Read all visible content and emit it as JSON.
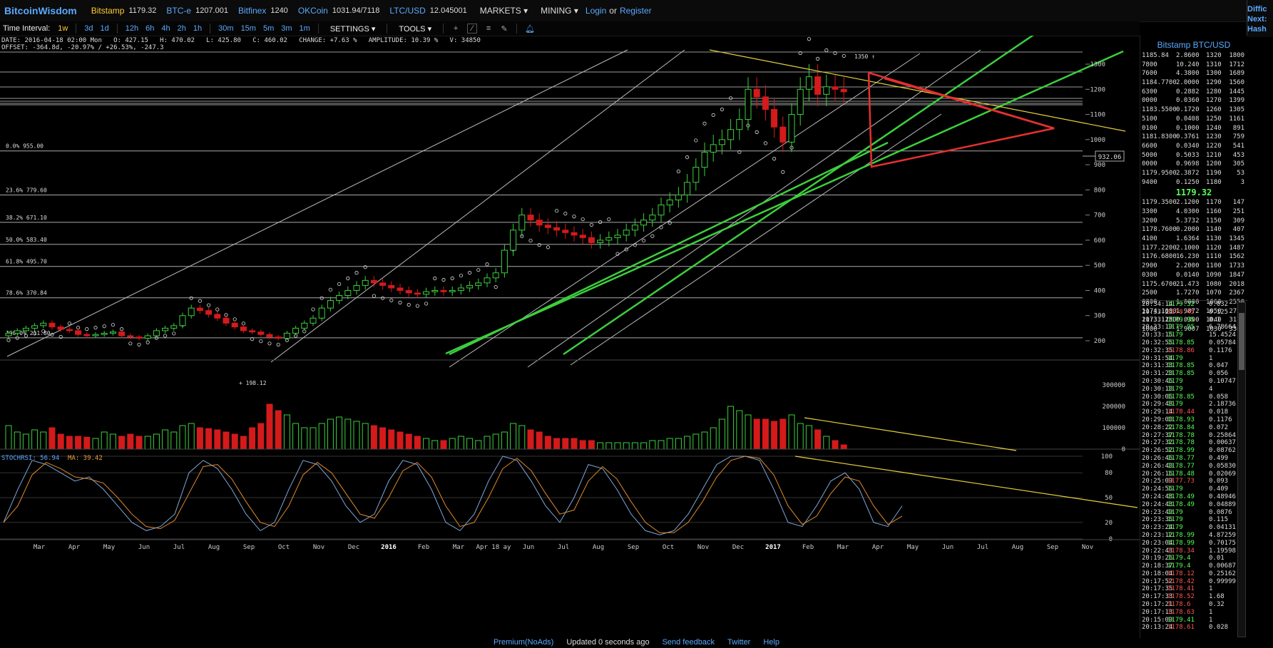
{
  "topbar": {
    "brand": "BitcoinWisdom",
    "tickers": [
      {
        "name": "Bitstamp",
        "price": "1179.32"
      },
      {
        "name": "BTC-e",
        "price": "1207.001"
      },
      {
        "name": "Bitfinex",
        "price": "1240"
      },
      {
        "name": "OKCoin",
        "price": "1031.94/7118"
      },
      {
        "name": "LTC/USD",
        "price": "12.045001"
      }
    ],
    "menus": [
      "MARKETS",
      "MINING"
    ],
    "login": "Login",
    "or": "or",
    "register": "Register"
  },
  "rightstub": [
    "Diffic",
    "Next:",
    "Hash"
  ],
  "toolbar": {
    "label": "Time Interval:",
    "intervals": [
      "1w",
      "3d",
      "1d",
      "12h",
      "6h",
      "4h",
      "2h",
      "1h",
      "30m",
      "15m",
      "5m",
      "3m",
      "1m"
    ],
    "active_interval": "1w",
    "settings": "SETTINGS",
    "tools": "TOOLS"
  },
  "info": {
    "line1": "DATE: 2016-04-18 02:00 Mon   O: 427.15   H: 470.02   L: 425.80   C: 460.02   CHANGE: +7.63 %   AMPLITUDE: 10.39 %   V: 34850",
    "line2": "OFFSET: -364.8d, -20.97% / +26.53%, -247.3"
  },
  "chart": {
    "fib_levels": [
      {
        "label": "0.0% 955.00",
        "value": 955
      },
      {
        "label": "23.6% 779.60",
        "value": 779.6
      },
      {
        "label": "38.2% 671.10",
        "value": 671.1
      },
      {
        "label": "50.0% 583.40",
        "value": 583.4
      },
      {
        "label": "61.8% 495.70",
        "value": 495.7
      },
      {
        "label": "78.6% 370.84",
        "value": 370.84
      },
      {
        "label": "100.0% 211.80",
        "value": 211.8
      }
    ],
    "price_ticks": [
      "1300",
      "1200",
      "1100",
      "1000",
      "900",
      "800",
      "700",
      "600",
      "500",
      "400",
      "300",
      "200"
    ],
    "volume_ticks": [
      "300000",
      "200000",
      "100000",
      "0"
    ],
    "rsi_ticks": [
      "100",
      "80",
      "50",
      "20",
      "0"
    ],
    "time_labels": [
      "Mar",
      "Apr",
      "May",
      "Jun",
      "Jul",
      "Aug",
      "Sep",
      "Oct",
      "Nov",
      "Dec",
      "2016",
      "Feb",
      "Mar",
      "Apr 18 ay",
      "Jun",
      "Jul",
      "Aug",
      "Sep",
      "Oct",
      "Nov",
      "Dec",
      "2017",
      "Feb",
      "Mar",
      "Apr",
      "May",
      "Jun",
      "Jul",
      "Aug",
      "Sep",
      "Nov"
    ],
    "crosshair_price": "932.06",
    "annotation_high": "1350",
    "annotation_low": "198.12",
    "stochrsi_label": "STOCHRSI: 56.94",
    "ma_label": "MA: 39.42"
  },
  "sidebar": {
    "title": "Bitstamp BTC/USD",
    "asks": [
      [
        "1185.84",
        "2.8600",
        "1320",
        "1800"
      ],
      [
        "7800",
        "10.240",
        "1310",
        "1712"
      ],
      [
        "7600",
        "4.3800",
        "1300",
        "1689"
      ],
      [
        "1184.7700",
        "2.0000",
        "1290",
        "1560"
      ],
      [
        "6300",
        "0.2882",
        "1280",
        "1445"
      ],
      [
        "0000",
        "0.0360",
        "1270",
        "1399"
      ],
      [
        "1183.5500",
        "0.1720",
        "1260",
        "1305"
      ],
      [
        "5100",
        "0.0408",
        "1250",
        "1161"
      ],
      [
        "0100",
        "0.1000",
        "1240",
        "891"
      ],
      [
        "1181.8300",
        "0.3761",
        "1230",
        "759"
      ],
      [
        "6600",
        "0.0340",
        "1220",
        "541"
      ],
      [
        "5000",
        "0.5033",
        "1210",
        "453"
      ],
      [
        "0000",
        "0.9698",
        "1200",
        "305"
      ],
      [
        "1179.9500",
        "2.3872",
        "1190",
        "53"
      ],
      [
        "9400",
        "0.1250",
        "1180",
        "3"
      ]
    ],
    "last_price": "1179.32",
    "bids": [
      [
        "1179.3500",
        "2.1200",
        "1170",
        "147"
      ],
      [
        "3300",
        "4.0300",
        "1160",
        "251"
      ],
      [
        "3200",
        "5.3732",
        "1150",
        "309"
      ],
      [
        "1178.7600",
        "0.2000",
        "1140",
        "407"
      ],
      [
        "4100",
        "1.6364",
        "1130",
        "1345"
      ],
      [
        "1177.2200",
        "2.1000",
        "1120",
        "1487"
      ],
      [
        "1176.6800",
        "16.230",
        "1110",
        "1562"
      ],
      [
        "2900",
        "2.2000",
        "1100",
        "1733"
      ],
      [
        "0300",
        "0.0140",
        "1090",
        "1847"
      ],
      [
        "1175.6700",
        "21.473",
        "1080",
        "2018"
      ],
      [
        "2500",
        "1.7270",
        "1070",
        "2367"
      ],
      [
        "0800",
        "1.0000",
        "1060",
        "2550"
      ],
      [
        "1174.1600",
        "1.9872",
        "1050",
        "2722"
      ],
      [
        "1173.1100",
        "0.0300",
        "1040",
        "3179"
      ],
      [
        "1000",
        "1.9007",
        "1030",
        "3306"
      ]
    ],
    "trades": [
      [
        "20:34:14",
        "1179.32",
        "up",
        "0.032"
      ],
      [
        "20:33:26",
        "1178.45",
        "dn",
        "0.125"
      ],
      [
        "20:33:25",
        "1179.95",
        "up",
        "0.1"
      ],
      [
        "20:33:19",
        "1179.95",
        "up",
        "6.78664"
      ],
      [
        "20:33:15",
        "1179",
        "up",
        "15.4524"
      ],
      [
        "20:32:55",
        "1178.85",
        "up",
        "0.05784"
      ],
      [
        "20:32:35",
        "1178.86",
        "dn",
        "0.1176"
      ],
      [
        "20:31:54",
        "1179",
        "up",
        "1"
      ],
      [
        "20:31:33",
        "1178.85",
        "up",
        "0.047"
      ],
      [
        "20:31:20",
        "1178.85",
        "up",
        "0.056"
      ],
      [
        "20:30:46",
        "1179",
        "up",
        "0.10747"
      ],
      [
        "20:30:10",
        "1179",
        "up",
        "4"
      ],
      [
        "20:30:06",
        "1178.85",
        "up",
        "0.058"
      ],
      [
        "20:29:48",
        "1179",
        "up",
        "2.18736"
      ],
      [
        "20:29:14",
        "1178.44",
        "dn",
        "0.018"
      ],
      [
        "20:29:00",
        "1178.93",
        "up",
        "0.1176"
      ],
      [
        "20:28:22",
        "1178.84",
        "up",
        "0.072"
      ],
      [
        "20:27:37",
        "1178.78",
        "up",
        "0.25864"
      ],
      [
        "20:27:32",
        "1178.78",
        "up",
        "0.00637"
      ],
      [
        "20:26:52",
        "1178.99",
        "up",
        "0.08762"
      ],
      [
        "20:26:46",
        "1178.77",
        "up",
        "0.499"
      ],
      [
        "20:26:40",
        "1178.77",
        "up",
        "0.05830"
      ],
      [
        "20:26:16",
        "1178.48",
        "up",
        "0.02069"
      ],
      [
        "20:25:09",
        "1177.73",
        "dn",
        "0.093"
      ],
      [
        "20:24:56",
        "1179",
        "up",
        "0.409"
      ],
      [
        "20:24:48",
        "1178.49",
        "up",
        "0.48946"
      ],
      [
        "20:24:43",
        "1178.49",
        "up",
        "0.04889"
      ],
      [
        "20:23:49",
        "1179",
        "up",
        "0.0876"
      ],
      [
        "20:23:36",
        "1179",
        "up",
        "0.115"
      ],
      [
        "20:23:24",
        "1179",
        "up",
        "0.04131"
      ],
      [
        "20:23:12",
        "1178.99",
        "up",
        "4.87259"
      ],
      [
        "20:23:04",
        "1178.99",
        "up",
        "0.70175"
      ],
      [
        "20:22:43",
        "1178.34",
        "dn",
        "1.19598"
      ],
      [
        "20:19:26",
        "1179.4",
        "up",
        "0.01"
      ],
      [
        "20:18:37",
        "1179.4",
        "up",
        "0.00687"
      ],
      [
        "20:18:04",
        "1178.12",
        "dn",
        "0.25162"
      ],
      [
        "20:17:52",
        "1178.42",
        "dn",
        "0.99999"
      ],
      [
        "20:17:35",
        "1178.41",
        "dn",
        "1"
      ],
      [
        "20:17:33",
        "1178.52",
        "dn",
        "1.68"
      ],
      [
        "20:17:21",
        "1178.6",
        "dn",
        "0.32"
      ],
      [
        "20:17:13",
        "1178.63",
        "dn",
        "1"
      ],
      [
        "20:15:09",
        "1179.41",
        "up",
        "1"
      ],
      [
        "20:13:24",
        "1178.61",
        "dn",
        "0.028"
      ]
    ]
  },
  "footer": {
    "premium": "Premium(NoAds)",
    "updated": "Updated 0 seconds ago",
    "feedback": "Send feedback",
    "twitter": "Twitter",
    "help": "Help"
  },
  "colors": {
    "up": "#3ccf3c",
    "down": "#d41a1a",
    "link": "#5aa9ff",
    "accent": "#ffcc33"
  }
}
